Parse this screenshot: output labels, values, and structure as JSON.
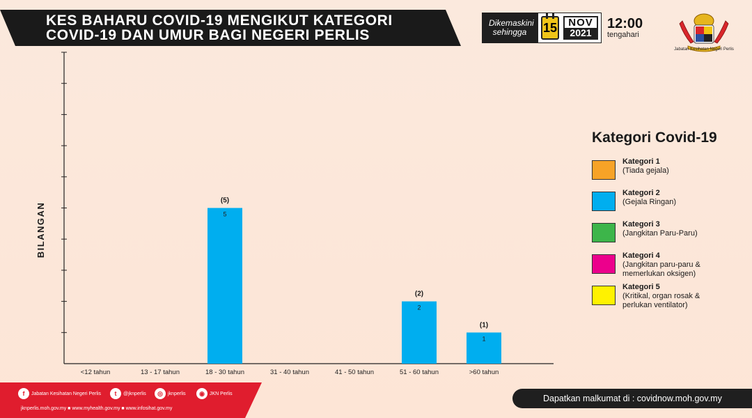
{
  "header": {
    "title_line1": "KES BAHARU COVID-19 MENGIKUT KATEGORI",
    "title_line2": "COVID-19 DAN UMUR BAGI NEGERI PERLIS"
  },
  "update": {
    "label_line1": "Dikemaskini",
    "label_line2": "sehingga",
    "day": "15",
    "month": "NOV",
    "year": "2021",
    "time": "12:00",
    "period": "tengahari"
  },
  "logo": {
    "caption": "Jabatan Kesihatan Negeri Perlis",
    "icon": "state-crest-icon"
  },
  "chart_data": {
    "type": "bar",
    "ylabel": "BILANGAN",
    "xlabel": "",
    "categories": [
      "<12 tahun",
      "13 - 17 tahun",
      "18 - 30 tahun",
      "31 - 40 tahun",
      "41 - 50 tahun",
      "51 - 60 tahun",
      ">60 tahun"
    ],
    "series": [
      {
        "name": "Kategori 1",
        "color": "#f7a327",
        "values": [
          0,
          0,
          0,
          0,
          0,
          0,
          0
        ]
      },
      {
        "name": "Kategori 2",
        "color": "#00aeef",
        "values": [
          0,
          0,
          5,
          0,
          0,
          2,
          1
        ]
      },
      {
        "name": "Kategori 3",
        "color": "#3db54a",
        "values": [
          0,
          0,
          0,
          0,
          0,
          0,
          0
        ]
      },
      {
        "name": "Kategori 4",
        "color": "#ec008c",
        "values": [
          0,
          0,
          0,
          0,
          0,
          0,
          0
        ]
      },
      {
        "name": "Kategori 5",
        "color": "#fff200",
        "values": [
          0,
          0,
          0,
          0,
          0,
          0,
          0
        ]
      }
    ],
    "totals": [
      "(5)",
      "(2)",
      "(1)"
    ],
    "ylim": [
      0,
      10
    ],
    "grid": false,
    "legend_position": "right"
  },
  "legend": {
    "title": "Kategori Covid-19",
    "items": [
      {
        "name": "Kategori 1",
        "desc": "(Tiada gejala)",
        "color": "#f7a327"
      },
      {
        "name": "Kategori 2",
        "desc": "(Gejala Ringan)",
        "color": "#00aeef"
      },
      {
        "name": "Kategori 3",
        "desc": "(Jangkitan Paru-Paru)",
        "color": "#3db54a"
      },
      {
        "name": "Kategori 4",
        "desc": "(Jangkitan paru-paru & memerlukan oksigen)",
        "color": "#ec008c"
      },
      {
        "name": "Kategori 5",
        "desc": "(Kritikal, organ rosak & perlukan ventilator)",
        "color": "#fff200"
      }
    ]
  },
  "footer": {
    "social": [
      {
        "icon": "facebook-icon",
        "glyph": "f",
        "label": "Jabatan Kesihatan Negeri Perlis"
      },
      {
        "icon": "twitter-icon",
        "glyph": "t",
        "label": "@jknperlis"
      },
      {
        "icon": "instagram-icon",
        "glyph": "◎",
        "label": "jknperlis"
      },
      {
        "icon": "podcast-icon",
        "glyph": "◉",
        "label": "JKN Perlis"
      }
    ],
    "urls": "jknperlis.moh.gov.my ■ www.myhealth.gov.my ■ www.infosihat.gov.my",
    "info": "Dapatkan malkumat di : covidnow.moh.gov.my"
  }
}
